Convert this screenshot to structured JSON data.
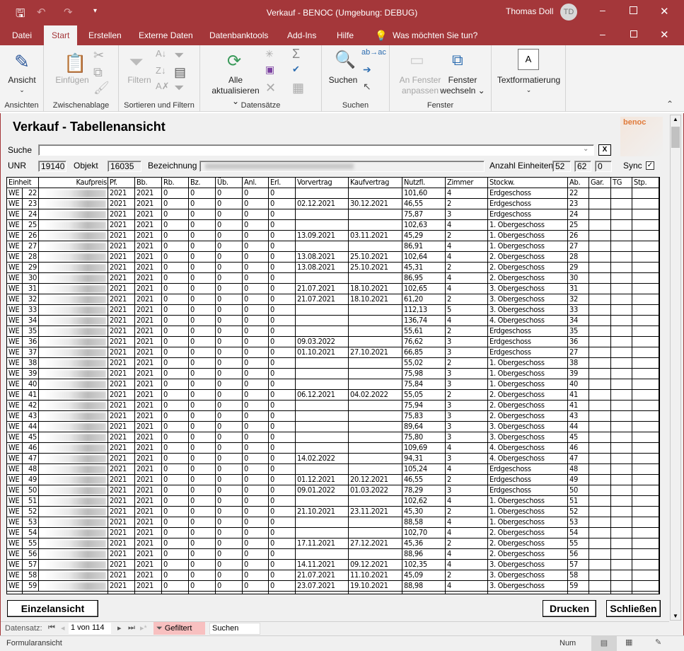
{
  "titlebar": {
    "title": "Verkauf  -  BENOC (Umgebung: DEBUG)",
    "user": "Thomas Doll",
    "initials": "TD",
    "accent": "#a4373a"
  },
  "tabs": [
    {
      "label": "Datei"
    },
    {
      "label": "Start"
    },
    {
      "label": "Erstellen"
    },
    {
      "label": "Externe Daten"
    },
    {
      "label": "Datenbanktools"
    },
    {
      "label": "Add-Ins"
    },
    {
      "label": "Hilfe"
    },
    {
      "label": "Was möchten Sie tun?"
    }
  ],
  "ribbon": {
    "ansicht": "Ansicht",
    "ansichten": "Ansichten",
    "einfuegen": "Einfügen",
    "zwischenablage": "Zwischenablage",
    "filtern": "Filtern",
    "sortieren": "Sortieren und Filtern",
    "alle": "Alle",
    "aktualisieren": "aktualisieren",
    "datensaetze": "Datensätze",
    "suchen": "Suchen",
    "suchen_grp": "Suchen",
    "anfenster1": "An Fenster",
    "anfenster2": "anpassen",
    "fenster1": "Fenster",
    "fenster2": "wechseln",
    "fenster_grp": "Fenster",
    "textformat": "Textformatierung",
    "textformat_icon": "A"
  },
  "form": {
    "title": "Verkauf  -  Tabellenansicht",
    "logo": "benoc 2020",
    "suche_label": "Suche",
    "suche_value": "",
    "clear": "X",
    "unr_label": "UNR",
    "unr": "19140",
    "objekt_label": "Objekt",
    "objekt": "16035",
    "bez_label": "Bezeichnung",
    "anzahl_label": "Anzahl Einheiten",
    "anzahl1": "52",
    "anzahl2": "62",
    "anzahl3": "0",
    "sync_label": "Sync",
    "sync_checked": true
  },
  "table": {
    "headers": [
      "Einheit",
      "Kaufpreis",
      "Pf.",
      "Bb.",
      "Rb.",
      "Bz.",
      "Üb.",
      "Anl.",
      "Erl.",
      "Vorvertrag",
      "Kaufvertrag",
      "Nutzfl.",
      "Zimmer",
      "Stockw.",
      "Ab.",
      "Gar.",
      "TG",
      "Stp."
    ],
    "rows": [
      [
        "WE",
        "22",
        "2021",
        "2021",
        "0",
        "0",
        "0",
        "0",
        "0",
        "",
        "",
        "101,60",
        "4",
        "Erdgeschoss",
        "22",
        "",
        "",
        ""
      ],
      [
        "WE",
        "23",
        "2021",
        "2021",
        "0",
        "0",
        "0",
        "0",
        "0",
        "02.12.2021",
        "30.12.2021",
        "46,55",
        "2",
        "Erdgeschoss",
        "23",
        "",
        "",
        ""
      ],
      [
        "WE",
        "24",
        "2021",
        "2021",
        "0",
        "0",
        "0",
        "0",
        "0",
        "",
        "",
        "75,87",
        "3",
        "Erdgeschoss",
        "24",
        "",
        "",
        ""
      ],
      [
        "WE",
        "25",
        "2021",
        "2021",
        "0",
        "0",
        "0",
        "0",
        "0",
        "",
        "",
        "102,63",
        "4",
        "1. Obergeschoss",
        "25",
        "",
        "",
        ""
      ],
      [
        "WE",
        "26",
        "2021",
        "2021",
        "0",
        "0",
        "0",
        "0",
        "0",
        "13.09.2021",
        "03.11.2021",
        "45,29",
        "2",
        "1. Obergeschoss",
        "26",
        "",
        "",
        ""
      ],
      [
        "WE",
        "27",
        "2021",
        "2021",
        "0",
        "0",
        "0",
        "0",
        "0",
        "",
        "",
        "86,91",
        "4",
        "1. Obergeschoss",
        "27",
        "",
        "",
        ""
      ],
      [
        "WE",
        "28",
        "2021",
        "2021",
        "0",
        "0",
        "0",
        "0",
        "0",
        "13.08.2021",
        "25.10.2021",
        "102,64",
        "4",
        "2. Obergeschoss",
        "28",
        "",
        "",
        ""
      ],
      [
        "WE",
        "29",
        "2021",
        "2021",
        "0",
        "0",
        "0",
        "0",
        "0",
        "13.08.2021",
        "25.10.2021",
        "45,31",
        "2",
        "2. Obergeschoss",
        "29",
        "",
        "",
        ""
      ],
      [
        "WE",
        "30",
        "2021",
        "2021",
        "0",
        "0",
        "0",
        "0",
        "0",
        "",
        "",
        "86,95",
        "4",
        "2. Obergeschoss",
        "30",
        "",
        "",
        ""
      ],
      [
        "WE",
        "31",
        "2021",
        "2021",
        "0",
        "0",
        "0",
        "0",
        "0",
        "21.07.2021",
        "18.10.2021",
        "102,65",
        "4",
        "3. Obergeschoss",
        "31",
        "",
        "",
        ""
      ],
      [
        "WE",
        "32",
        "2021",
        "2021",
        "0",
        "0",
        "0",
        "0",
        "0",
        "21.07.2021",
        "18.10.2021",
        "61,20",
        "2",
        "3. Obergeschoss",
        "32",
        "",
        "",
        ""
      ],
      [
        "WE",
        "33",
        "2021",
        "2021",
        "0",
        "0",
        "0",
        "0",
        "0",
        "",
        "",
        "112,13",
        "5",
        "3. Obergeschoss",
        "33",
        "",
        "",
        ""
      ],
      [
        "WE",
        "34",
        "2021",
        "2021",
        "0",
        "0",
        "0",
        "0",
        "0",
        "",
        "",
        "136,74",
        "4",
        "4. Obergeschoss",
        "34",
        "",
        "",
        ""
      ],
      [
        "WE",
        "35",
        "2021",
        "2021",
        "0",
        "0",
        "0",
        "0",
        "0",
        "",
        "",
        "55,61",
        "2",
        "Erdgeschoss",
        "35",
        "",
        "",
        ""
      ],
      [
        "WE",
        "36",
        "2021",
        "2021",
        "0",
        "0",
        "0",
        "0",
        "0",
        "09.03.2022",
        "",
        "76,62",
        "3",
        "Erdgeschoss",
        "36",
        "",
        "",
        ""
      ],
      [
        "WE",
        "37",
        "2021",
        "2021",
        "0",
        "0",
        "0",
        "0",
        "0",
        "01.10.2021",
        "27.10.2021",
        "66,85",
        "3",
        "Erdgeschoss",
        "27",
        "",
        "",
        ""
      ],
      [
        "WE",
        "38",
        "2021",
        "2021",
        "0",
        "0",
        "0",
        "0",
        "0",
        "",
        "",
        "55,02",
        "2",
        "1. Obergeschoss",
        "38",
        "",
        "",
        ""
      ],
      [
        "WE",
        "39",
        "2021",
        "2021",
        "0",
        "0",
        "0",
        "0",
        "0",
        "",
        "",
        "75,98",
        "3",
        "1. Obergeschoss",
        "39",
        "",
        "",
        ""
      ],
      [
        "WE",
        "40",
        "2021",
        "2021",
        "0",
        "0",
        "0",
        "0",
        "0",
        "",
        "",
        "75,84",
        "3",
        "1. Obergeschoss",
        "40",
        "",
        "",
        ""
      ],
      [
        "WE",
        "41",
        "2021",
        "2021",
        "0",
        "0",
        "0",
        "0",
        "0",
        "06.12.2021",
        "04.02.2022",
        "55,05",
        "2",
        "2. Obergeschoss",
        "41",
        "",
        "",
        ""
      ],
      [
        "WE",
        "42",
        "2021",
        "2021",
        "0",
        "0",
        "0",
        "0",
        "0",
        "",
        "",
        "75,94",
        "3",
        "2. Obergeschoss",
        "41",
        "",
        "",
        ""
      ],
      [
        "WE",
        "43",
        "2021",
        "2021",
        "0",
        "0",
        "0",
        "0",
        "0",
        "",
        "",
        "75,83",
        "3",
        "2. Obergeschoss",
        "43",
        "",
        "",
        ""
      ],
      [
        "WE",
        "44",
        "2021",
        "2021",
        "0",
        "0",
        "0",
        "0",
        "0",
        "",
        "",
        "89,64",
        "3",
        "3. Obergeschoss",
        "44",
        "",
        "",
        ""
      ],
      [
        "WE",
        "45",
        "2021",
        "2021",
        "0",
        "0",
        "0",
        "0",
        "0",
        "",
        "",
        "75,80",
        "3",
        "3. Obergeschoss",
        "45",
        "",
        "",
        ""
      ],
      [
        "WE",
        "46",
        "2021",
        "2021",
        "0",
        "0",
        "0",
        "0",
        "0",
        "",
        "",
        "109,69",
        "4",
        "4. Obergeschoss",
        "46",
        "",
        "",
        ""
      ],
      [
        "WE",
        "47",
        "2021",
        "2021",
        "0",
        "0",
        "0",
        "0",
        "0",
        "14.02.2022",
        "",
        "94,31",
        "3",
        "4. Obergeschoss",
        "47",
        "",
        "",
        ""
      ],
      [
        "WE",
        "48",
        "2021",
        "2021",
        "0",
        "0",
        "0",
        "0",
        "0",
        "",
        "",
        "105,24",
        "4",
        "Erdgeschoss",
        "48",
        "",
        "",
        ""
      ],
      [
        "WE",
        "49",
        "2021",
        "2021",
        "0",
        "0",
        "0",
        "0",
        "0",
        "01.12.2021",
        "20.12.2021",
        "46,55",
        "2",
        "Erdgeschoss",
        "49",
        "",
        "",
        ""
      ],
      [
        "WE",
        "50",
        "2021",
        "2021",
        "0",
        "0",
        "0",
        "0",
        "0",
        "09.01.2022",
        "01.03.2022",
        "78,29",
        "3",
        "Erdgeschoss",
        "50",
        "",
        "",
        ""
      ],
      [
        "WE",
        "51",
        "2021",
        "2021",
        "0",
        "0",
        "0",
        "0",
        "0",
        "",
        "",
        "102,62",
        "4",
        "1. Obergeschoss",
        "51",
        "",
        "",
        ""
      ],
      [
        "WE",
        "52",
        "2021",
        "2021",
        "0",
        "0",
        "0",
        "0",
        "0",
        "21.10.2021",
        "23.11.2021",
        "45,30",
        "2",
        "1. Obergeschoss",
        "52",
        "",
        "",
        ""
      ],
      [
        "WE",
        "53",
        "2021",
        "2021",
        "0",
        "0",
        "0",
        "0",
        "0",
        "",
        "",
        "88,58",
        "4",
        "1. Obergeschoss",
        "53",
        "",
        "",
        ""
      ],
      [
        "WE",
        "54",
        "2021",
        "2021",
        "0",
        "0",
        "0",
        "0",
        "0",
        "",
        "",
        "102,70",
        "4",
        "2. Obergeschoss",
        "54",
        "",
        "",
        ""
      ],
      [
        "WE",
        "55",
        "2021",
        "2021",
        "0",
        "0",
        "0",
        "0",
        "0",
        "17.11.2021",
        "27.12.2021",
        "45,36",
        "2",
        "2. Obergeschoss",
        "55",
        "",
        "",
        ""
      ],
      [
        "WE",
        "56",
        "2021",
        "2021",
        "0",
        "0",
        "0",
        "0",
        "0",
        "",
        "",
        "88,96",
        "4",
        "2. Obergeschoss",
        "56",
        "",
        "",
        ""
      ],
      [
        "WE",
        "57",
        "2021",
        "2021",
        "0",
        "0",
        "0",
        "0",
        "0",
        "14.11.2021",
        "09.12.2021",
        "102,35",
        "4",
        "3. Obergeschoss",
        "57",
        "",
        "",
        ""
      ],
      [
        "WE",
        "58",
        "2021",
        "2021",
        "0",
        "0",
        "0",
        "0",
        "0",
        "21.07.2021",
        "11.10.2021",
        "45,09",
        "2",
        "3. Obergeschoss",
        "58",
        "",
        "",
        ""
      ],
      [
        "WE",
        "59",
        "2021",
        "2021",
        "0",
        "0",
        "0",
        "0",
        "0",
        "23.07.2021",
        "19.10.2021",
        "88,98",
        "4",
        "3. Obergeschoss",
        "59",
        "",
        "",
        ""
      ]
    ]
  },
  "buttons": {
    "einzel": "Einzelansicht",
    "drucken": "Drucken",
    "schliessen": "Schließen"
  },
  "nav": {
    "label": "Datensatz:",
    "position": "1 von 114",
    "filter": "Gefiltert",
    "search": "Suchen",
    "filter_color": "#f8c0c0"
  },
  "status": {
    "left": "Formularansicht",
    "num": "Num"
  }
}
